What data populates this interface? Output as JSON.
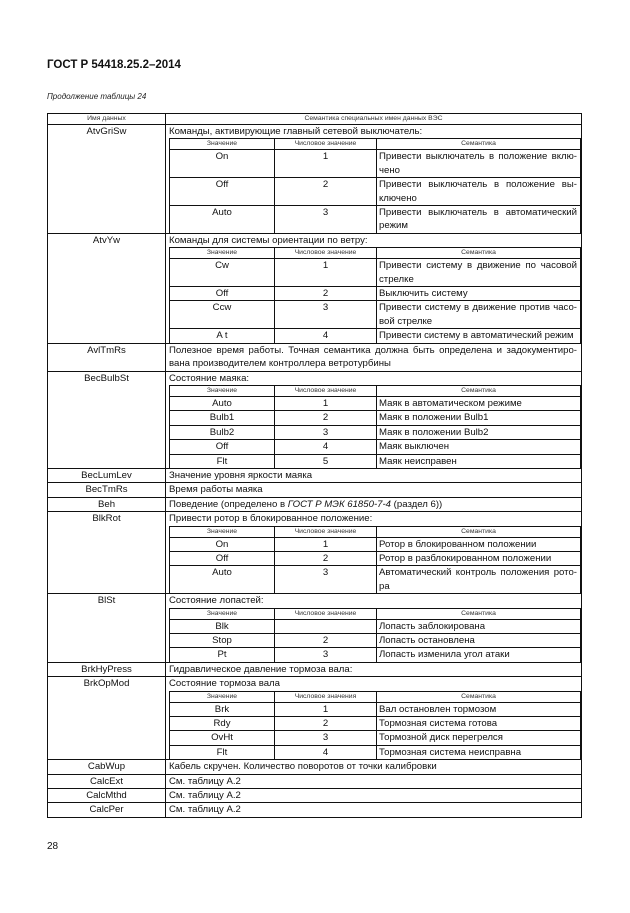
{
  "document": {
    "title": "ГОСТ Р 54418.25.2–2014",
    "caption": "Продолжение таблицы 24",
    "page_number": "28"
  },
  "table": {
    "headers": [
      "Имя данных",
      "Семантика специальных имен данных ВЭС"
    ],
    "rows": [
      {
        "name": "AtvGriSw",
        "text": "Команды, активирующие главный сетевой выключатель:",
        "sub": {
          "headers": [
            "Значение",
            "Числовое значение",
            "Семантика"
          ],
          "rows": [
            [
              "On",
              "1",
              "Привести выключатель в положение вклю-чено"
            ],
            [
              "Off",
              "2",
              "Привести выключатель в положение вы-ключено"
            ],
            [
              "Auto",
              "3",
              "Привести выключатель в автоматический режим"
            ]
          ]
        }
      },
      {
        "name": "AtvYw",
        "text": "Команды для системы ориентации по ветру:",
        "sub": {
          "headers": [
            "Значение",
            "Числовое значение",
            "Семантика"
          ],
          "rows": [
            [
              "Cw",
              "1",
              "Привести систему в движение по часовой стрелке"
            ],
            [
              "Off",
              "2",
              "Выключить систему"
            ],
            [
              "Ccw",
              "3",
              "Привести систему в движение против часо-вой стрелке"
            ],
            [
              "A t",
              "4",
              "Привести систему в автоматический режим"
            ]
          ]
        }
      },
      {
        "name": "AvlTmRs",
        "text": "Полезное время работы. Точная семантика должна быть определена и задокументиро-вана производителем контроллера ветротурбины"
      },
      {
        "name": "BecBulbSt",
        "text": "Состояние маяка:",
        "sub": {
          "headers": [
            "Значение",
            "Числовое значение",
            "Семантика"
          ],
          "rows": [
            [
              "Auto",
              "1",
              "Маяк в автоматическом режиме"
            ],
            [
              "Bulb1",
              "2",
              "Маяк в положении Bulb1"
            ],
            [
              "Bulb2",
              "3",
              "Маяк в положении Bulb2"
            ],
            [
              "Off",
              "4",
              "Маяк выключен"
            ],
            [
              "Flt",
              "5",
              "Маяк неисправен"
            ]
          ]
        }
      },
      {
        "name": "BecLumLev",
        "text": "Значение уровня яркости маяка"
      },
      {
        "name": "BecTmRs",
        "text": "Время работы маяка"
      },
      {
        "name": "Beh",
        "text": "Поведение (определено в ",
        "ref": "ГОСТ Р МЭК 61850-7-4",
        "text_after": " (раздел 6))"
      },
      {
        "name": "BlkRot",
        "text": "Привести ротор в блокированное положение:",
        "sub": {
          "headers": [
            "Значение",
            "Числовое значение",
            "Семантика"
          ],
          "rows": [
            [
              "On",
              "1",
              "Ротор в блокированном положении"
            ],
            [
              "Off",
              "2",
              "Ротор в разблокированном положении"
            ],
            [
              "Auto",
              "3",
              "Автоматический контроль положения рото-ра"
            ]
          ]
        }
      },
      {
        "name": "BlSt",
        "text": "Состояние лопастей:",
        "sub": {
          "headers": [
            "Значение",
            "Числовое значение",
            "Семантика"
          ],
          "rows": [
            [
              "Blk",
              "",
              "Лопасть заблокирована"
            ],
            [
              "Stop",
              "2",
              "Лопасть остановлена"
            ],
            [
              "Pt",
              "3",
              "Лопасть изменила угол атаки"
            ]
          ]
        }
      },
      {
        "name": "BrkHyPress",
        "text": "Гидравлическое давление тормоза вала:"
      },
      {
        "name": "BrkOpMod",
        "text": "Состояние тормоза вала",
        "sub": {
          "headers": [
            "Значение",
            "Числовое значения",
            "Семантика"
          ],
          "rows": [
            [
              "Brk",
              "1",
              "Вал остановлен тормозом"
            ],
            [
              "Rdy",
              "2",
              "Тормозная система готова"
            ],
            [
              "OvHt",
              "3",
              "Тормозной диск перегрелся"
            ],
            [
              "Flt",
              "4",
              "Тормозная система неисправна"
            ]
          ]
        }
      },
      {
        "name": "CabWup",
        "text": "Кабель скручен. Количество поворотов от точки калибровки"
      },
      {
        "name": "CalcExt",
        "text": "См. таблицу А.2"
      },
      {
        "name": "CalcMthd",
        "text": "См. таблицу А.2"
      },
      {
        "name": "CalcPer",
        "text": "См. таблицу А.2"
      }
    ]
  }
}
